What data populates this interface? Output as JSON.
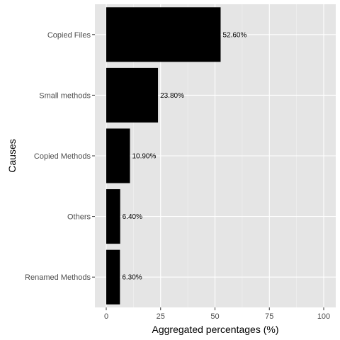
{
  "chart_data": {
    "type": "bar",
    "orientation": "horizontal",
    "categories": [
      "Copied Files",
      "Small methods",
      "Copied Methods",
      "Others",
      "Renamed Methods"
    ],
    "values": [
      52.6,
      23.8,
      10.9,
      6.4,
      6.3
    ],
    "data_labels": [
      "52.60%",
      "23.80%",
      "10.90%",
      "6.40%",
      "6.30%"
    ],
    "xlabel": "Aggregated percentages (%)",
    "ylabel": "Causes",
    "xlim": [
      0,
      100
    ],
    "x_ticks": [
      0,
      25,
      50,
      75,
      100
    ],
    "grid": true,
    "legend": "none",
    "colors": {
      "bar": "#000000",
      "panel": "#e5e5e5",
      "grid_major": "#ffffff",
      "grid_minor": "#f2f2f2"
    }
  }
}
